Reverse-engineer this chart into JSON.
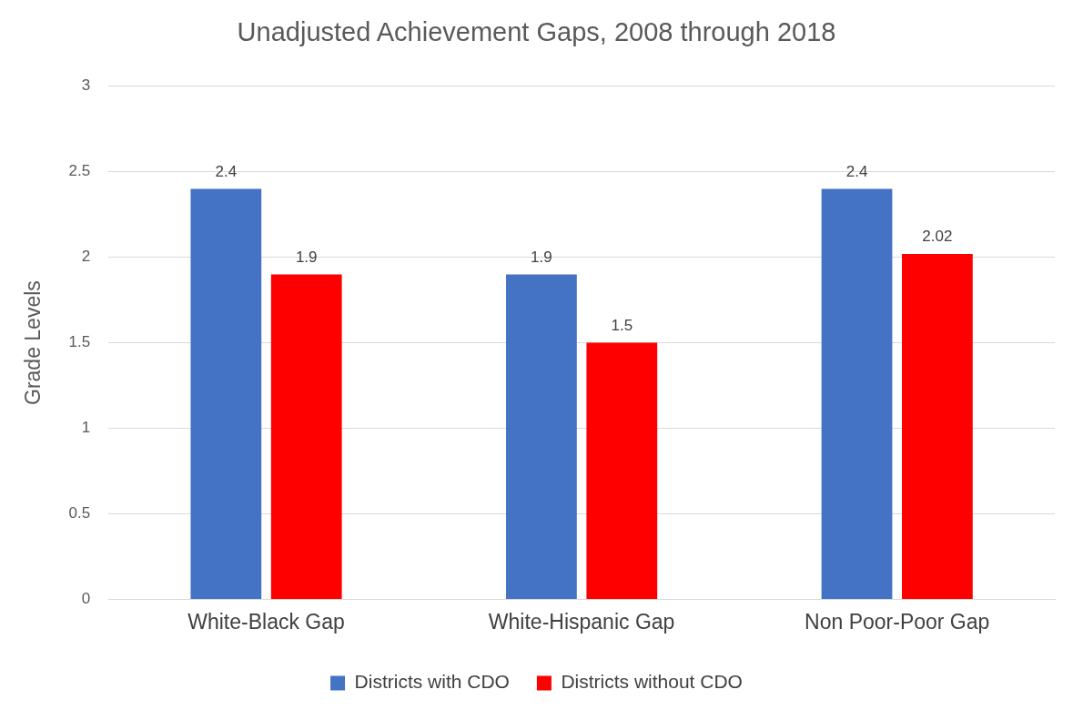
{
  "chart_data": {
    "type": "bar",
    "title": "Unadjusted Achievement Gaps, 2008 through 2018",
    "ylabel": "Grade Levels",
    "categories": [
      "White-Black Gap",
      "White-Hispanic Gap",
      "Non Poor-Poor Gap"
    ],
    "series": [
      {
        "name": "Districts with CDO",
        "color": "#4472c4",
        "values": [
          2.4,
          1.9,
          2.4
        ]
      },
      {
        "name": "Districts without CDO",
        "color": "#ff0000",
        "values": [
          1.9,
          1.5,
          2.02
        ]
      }
    ],
    "ylim": [
      0,
      3
    ],
    "yticks": [
      0,
      0.5,
      1,
      1.5,
      2,
      2.5,
      3
    ],
    "grid": "y",
    "legend": "bottom",
    "data_labels": true
  }
}
